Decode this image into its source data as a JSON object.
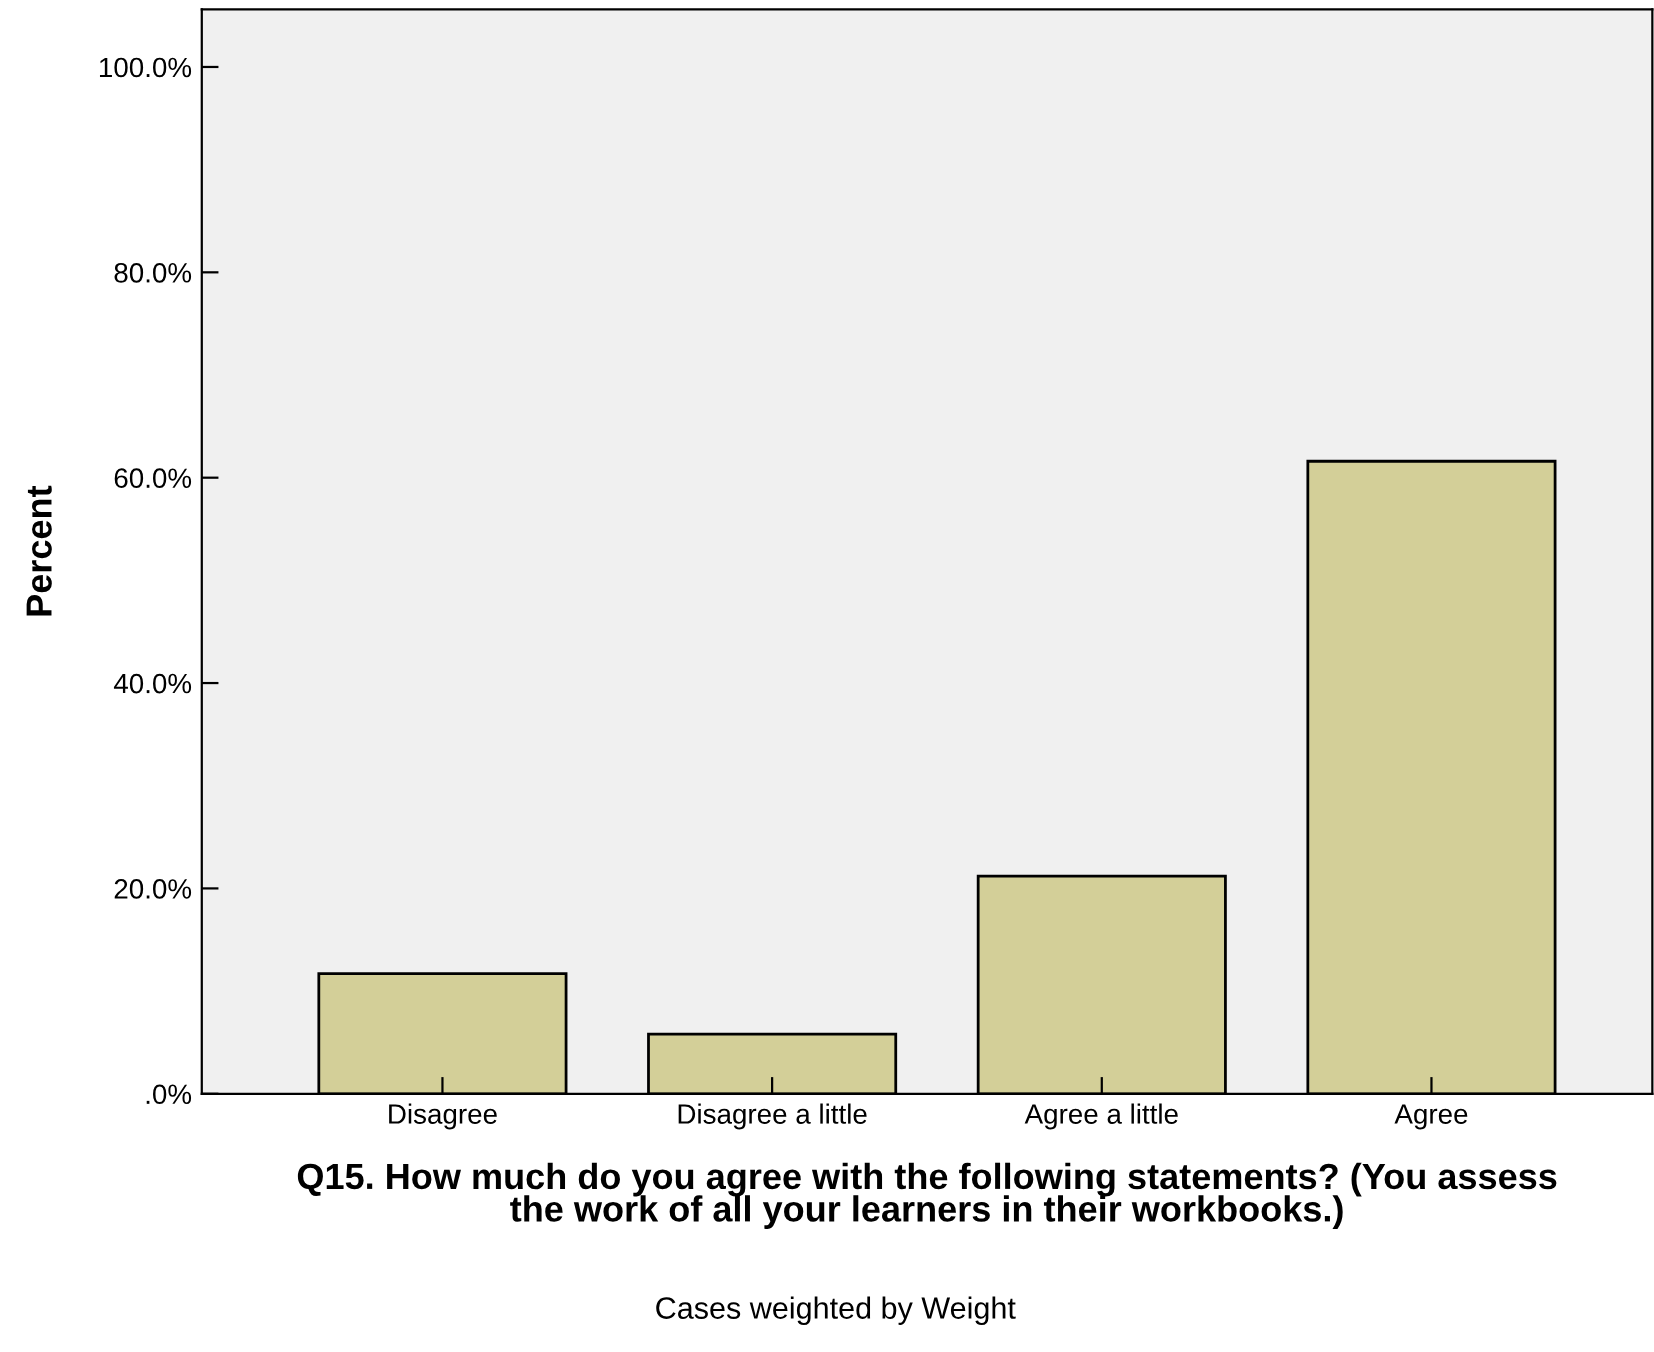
{
  "chart_data": {
    "type": "bar",
    "xlabel": "Q15. How much do you agree with the following statements? (You assess\nthe work of all your learners in their workbooks.)",
    "ylabel": "Percent",
    "categories": [
      "Disagree",
      "Disagree a little",
      "Agree a little",
      "Agree"
    ],
    "values": [
      11.7,
      5.8,
      21.2,
      61.6
    ],
    "color": "#d3cf98",
    "ylim": [
      0,
      105.6
    ],
    "yticks": [
      {
        "value": 0,
        "label": ".0%"
      },
      {
        "value": 20,
        "label": "20.0%"
      },
      {
        "value": 40,
        "label": "40.0%"
      },
      {
        "value": 60,
        "label": "60.0%"
      },
      {
        "value": 80,
        "label": "80.0%"
      },
      {
        "value": 100,
        "label": "100.0%"
      }
    ],
    "grid": false,
    "annotations": [
      "Cases weighted by Weight"
    ]
  }
}
